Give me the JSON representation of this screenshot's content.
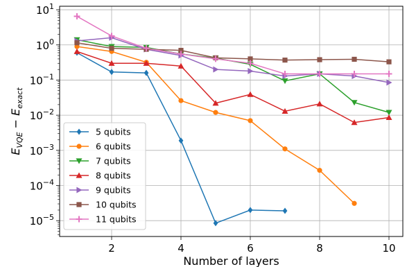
{
  "chart_data": {
    "type": "line",
    "xlabel": "Number of layers",
    "ylabel_main": "E",
    "ylabel_sub1": "VQE",
    "ylabel_mid": " − E",
    "ylabel_sub2": "exact",
    "x_scale": "linear",
    "y_scale": "log",
    "xlim": [
      0.5,
      10.4
    ],
    "ylim_exponent": [
      -5.45,
      1.1
    ],
    "x_ticks": [
      2,
      4,
      6,
      8,
      10
    ],
    "y_ticks": [
      {
        "base": "10",
        "exp": "1",
        "value": 10
      },
      {
        "base": "10",
        "exp": "0",
        "value": 1
      },
      {
        "base": "10",
        "exp": "−1",
        "value": 0.1
      },
      {
        "base": "10",
        "exp": "−2",
        "value": 0.01
      },
      {
        "base": "10",
        "exp": "−3",
        "value": 0.001
      },
      {
        "base": "10",
        "exp": "−4",
        "value": 0.0001
      },
      {
        "base": "10",
        "exp": "−5",
        "value": 1e-05
      }
    ],
    "grid": true,
    "legend_position": "lower-left",
    "series": [
      {
        "name": "5 qubits",
        "color": "#1f77b4",
        "marker": "diamond",
        "x": [
          1,
          2,
          3,
          4,
          5,
          6,
          7
        ],
        "y": [
          0.6,
          0.17,
          0.16,
          0.0019,
          8.5e-06,
          2e-05,
          1.9e-05
        ]
      },
      {
        "name": "6 qubits",
        "color": "#ff7f0e",
        "marker": "circle",
        "x": [
          1,
          2,
          3,
          4,
          5,
          6,
          7,
          8,
          9
        ],
        "y": [
          0.9,
          0.65,
          0.32,
          0.026,
          0.012,
          0.007,
          0.0011,
          0.00027,
          3.1e-05
        ]
      },
      {
        "name": "7 qubits",
        "color": "#2ca02c",
        "marker": "triangle-down",
        "x": [
          1,
          2,
          3,
          4,
          5,
          6,
          7,
          8,
          9,
          10
        ],
        "y": [
          1.4,
          0.9,
          0.85,
          0.55,
          0.42,
          0.28,
          0.095,
          0.15,
          0.023,
          0.012
        ]
      },
      {
        "name": "8 qubits",
        "color": "#d62728",
        "marker": "triangle-up",
        "x": [
          1,
          2,
          3,
          4,
          5,
          6,
          7,
          8,
          9,
          10
        ],
        "y": [
          0.65,
          0.3,
          0.3,
          0.25,
          0.022,
          0.039,
          0.013,
          0.021,
          0.0062,
          0.0086
        ]
      },
      {
        "name": "9 qubits",
        "color": "#9467bd",
        "marker": "triangle-right",
        "x": [
          1,
          2,
          3,
          4,
          5,
          6,
          7,
          8,
          9,
          10
        ],
        "y": [
          1.3,
          1.6,
          0.75,
          0.5,
          0.2,
          0.18,
          0.13,
          0.15,
          0.13,
          0.085
        ]
      },
      {
        "name": "10 qubits",
        "color": "#8c564b",
        "marker": "square",
        "x": [
          1,
          2,
          3,
          4,
          5,
          6,
          7,
          8,
          9,
          10
        ],
        "y": [
          1.15,
          0.8,
          0.75,
          0.7,
          0.43,
          0.4,
          0.37,
          0.38,
          0.39,
          0.33
        ]
      },
      {
        "name": "11 qubits",
        "color": "#e377c2",
        "marker": "plus",
        "x": [
          1,
          2,
          3,
          4,
          5,
          6,
          7,
          8,
          9,
          10
        ],
        "y": [
          6.5,
          1.8,
          0.8,
          0.55,
          0.4,
          0.3,
          0.15,
          0.15,
          0.15,
          0.15
        ]
      }
    ]
  }
}
